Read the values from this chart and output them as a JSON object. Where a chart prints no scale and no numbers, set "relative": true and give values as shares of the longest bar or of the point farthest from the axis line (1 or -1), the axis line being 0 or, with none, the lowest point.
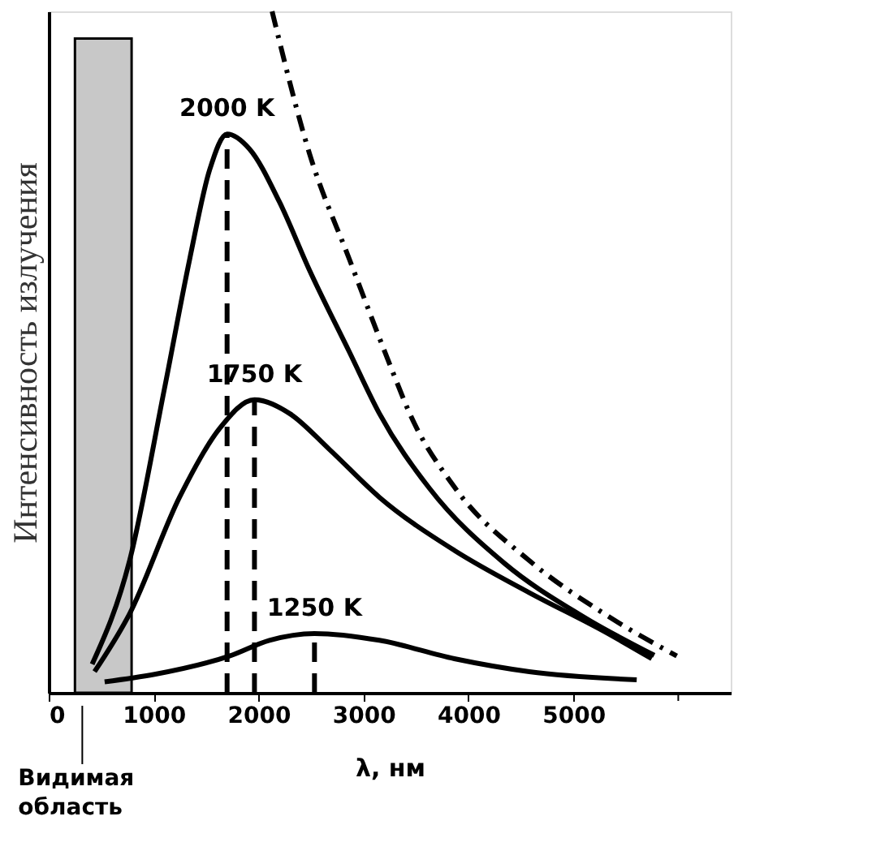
{
  "chart_data": {
    "type": "line",
    "relative": true,
    "xlabel": "λ, нм",
    "ylabel": "Интенсивность излучения",
    "xlim": [
      0,
      6500
    ],
    "xticks": [
      0,
      1000,
      2000,
      3000,
      4000,
      5000,
      {
        "value": 6000,
        "label": null
      }
    ],
    "grid": false,
    "marker": "none",
    "series": [
      {
        "name": "2000 K",
        "color": "#000000",
        "line_style": "solid",
        "x": [
          414,
          771,
          1104,
          1343,
          1533,
          1700,
          1914,
          2200,
          2486,
          2866,
          3151,
          3629,
          4343,
          5057,
          5771
        ],
        "values": [
          0.042,
          0.194,
          0.447,
          0.636,
          0.767,
          0.82,
          0.798,
          0.72,
          0.62,
          0.5,
          0.41,
          0.3,
          0.19,
          0.115,
          0.055
        ]
      },
      {
        "name": "1750 K",
        "color": "#000000",
        "line_style": "solid",
        "x": [
          437,
          771,
          1247,
          1629,
          1961,
          2294,
          2676,
          3151,
          3866,
          4580,
          5294,
          5747
        ],
        "values": [
          0.031,
          0.116,
          0.287,
          0.388,
          0.43,
          0.41,
          0.357,
          0.287,
          0.209,
          0.147,
          0.09,
          0.05
        ]
      },
      {
        "name": "1250 K",
        "color": "#000000",
        "line_style": "solid",
        "x": [
          533,
          1009,
          1723,
          2104,
          2533,
          3151,
          3866,
          4580,
          5604
        ],
        "values": [
          0.016,
          0.027,
          0.054,
          0.077,
          0.087,
          0.077,
          0.05,
          0.031,
          0.019
        ]
      },
      {
        "color": "#000000",
        "line_style": "dashed",
        "x": [
          2129,
          2486,
          2866,
          3294,
          3437,
          3866,
          4580,
          5294,
          5986
        ],
        "values": [
          1.0,
          0.791,
          0.636,
          0.465,
          0.411,
          0.302,
          0.194,
          0.116,
          0.054
        ]
      }
    ],
    "ref_lines": [
      {
        "axis": "x",
        "value": 1700,
        "line_style": "dashed",
        "color": "#000000"
      },
      {
        "axis": "x",
        "value": 1961,
        "line_style": "dashed",
        "color": "#000000"
      },
      {
        "axis": "x",
        "value": 2533,
        "line_style": "dashed",
        "color": "#000000"
      }
    ],
    "bands": [
      {
        "axis": "x",
        "from": 250,
        "to": 790,
        "label": "Видимая область",
        "color": "#c8c8c8"
      }
    ]
  }
}
